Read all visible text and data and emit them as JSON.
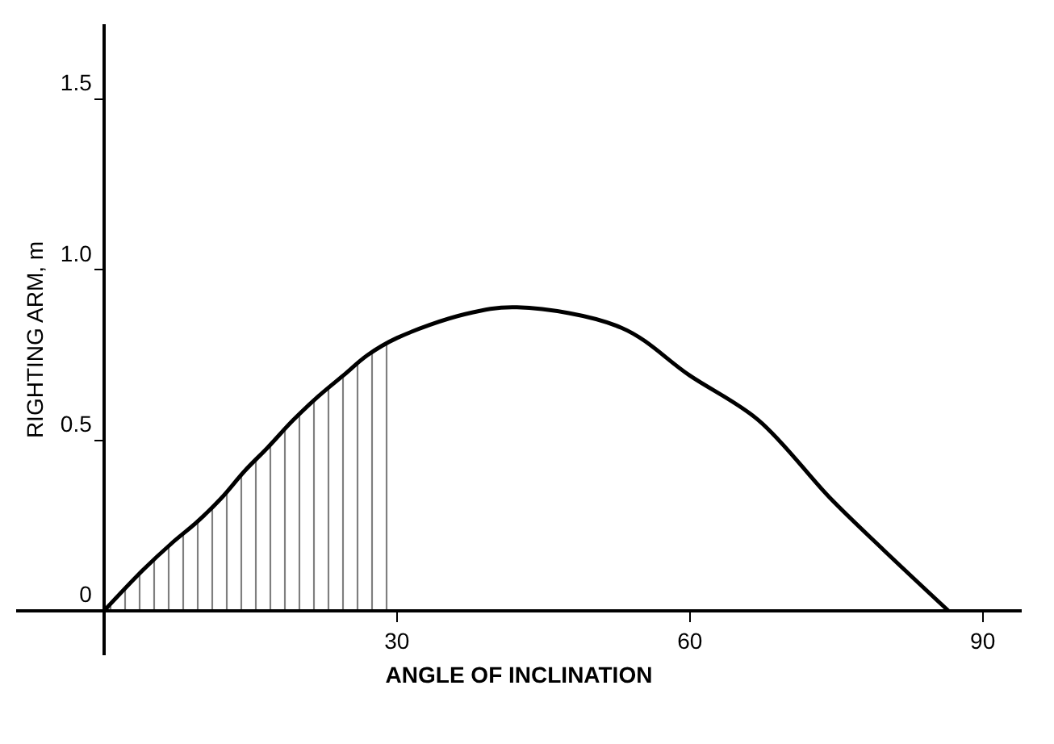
{
  "chart_data": {
    "type": "line",
    "xlabel": "ANGLE OF INCLINATION",
    "ylabel": "RIGHTING ARM, m",
    "xlim": [
      -9,
      94
    ],
    "ylim": [
      -0.13,
      1.72
    ],
    "xticks": [
      30,
      60,
      90
    ],
    "yticks": [
      0,
      {
        "value": 0.5,
        "label": "0.5"
      },
      {
        "value": 1.0,
        "label": "1.0"
      },
      {
        "value": 1.5,
        "label": "1.5"
      }
    ],
    "marker": "none",
    "line_style": "solid",
    "series": [
      {
        "color": "#000000",
        "x": [
          0,
          4,
          7,
          9.5,
          12,
          14.4,
          16.8,
          19.4,
          22,
          24.5,
          27,
          30,
          37,
          42.3,
          53,
          60,
          67,
          74.4,
          79.8,
          86.5
        ],
        "values": [
          0,
          0.12,
          0.2,
          0.26,
          0.33,
          0.41,
          0.48,
          0.56,
          0.63,
          0.69,
          0.75,
          0.8,
          0.87,
          0.89,
          0.83,
          0.69,
          0.56,
          0.33,
          0.18,
          0
        ]
      },
      {
        "type": "area",
        "color": "#000000",
        "x": [
          0,
          4,
          7,
          9.5,
          12,
          14.4,
          16.8,
          19.4,
          22,
          24.5,
          27,
          30
        ],
        "values": [
          0,
          0.12,
          0.2,
          0.26,
          0.33,
          0.41,
          0.48,
          0.56,
          0.63,
          0.69,
          0.75,
          0.8
        ]
      }
    ]
  }
}
